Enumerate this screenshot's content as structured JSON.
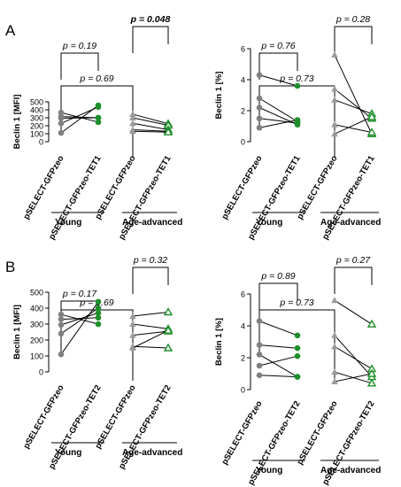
{
  "panel_letters": [
    "A",
    "B"
  ],
  "colors": {
    "young": "#808080",
    "advanced_gray": "#9a9a9a",
    "green": "#1e8f2a",
    "axis": "#000000"
  },
  "chart_data": [
    {
      "type": "scatter",
      "panel": "A",
      "ylabel": "Beclin 1 [MFI]",
      "ylim": [
        0,
        500
      ],
      "yticks": [
        0,
        100,
        200,
        300,
        400,
        500
      ],
      "categories": [
        "pSELECT-GFPzeo",
        "pSELECT-GFPzeo-TET1",
        "pSELECT-GFPzeo",
        "pSELECT-GFPzeo-TET1"
      ],
      "groups": [
        {
          "label": "Young",
          "cats": [
            0,
            1
          ]
        },
        {
          "label": "Age-advanced",
          "cats": [
            2,
            3
          ]
        }
      ],
      "paired": [
        {
          "cats": [
            0,
            1
          ],
          "pairs": [
            [
              110,
              455
            ],
            [
              230,
              435
            ],
            [
              295,
              300
            ],
            [
              315,
              300
            ],
            [
              365,
              245
            ]
          ]
        },
        {
          "cats": [
            2,
            3
          ],
          "pairs": [
            [
              345,
              225
            ],
            [
              300,
              205
            ],
            [
              230,
              150
            ],
            [
              150,
              130
            ],
            [
              130,
              120
            ]
          ]
        }
      ],
      "brackets": [
        {
          "from": 0,
          "to": 2,
          "level": 2,
          "text": "p = 0.69",
          "bold": false
        },
        {
          "from": 0,
          "to": 1,
          "level": 1,
          "text": "p = 0.19",
          "bold": false
        },
        {
          "from": 2,
          "to": 3,
          "level": 1,
          "text": "p = 0.048",
          "bold": true
        }
      ]
    },
    {
      "type": "scatter",
      "panel": "A",
      "ylabel": "Beclin 1 [%]",
      "ylim": [
        0,
        6
      ],
      "yticks": [
        0,
        2,
        4,
        6
      ],
      "categories": [
        "pSELECT-GFPzeo",
        "pSELECT-GFPzeo-TET1",
        "pSELECT-GFPzeo",
        "pSELECT-GFPzeo-TET1"
      ],
      "groups": [
        {
          "label": "Young",
          "cats": [
            0,
            1
          ]
        },
        {
          "label": "Age-advanced",
          "cats": [
            2,
            3
          ]
        }
      ],
      "paired": [
        {
          "cats": [
            0,
            1
          ],
          "pairs": [
            [
              4.3,
              3.6
            ],
            [
              2.8,
              1.3
            ],
            [
              2.2,
              1.1
            ],
            [
              1.5,
              1.2
            ],
            [
              0.9,
              1.4
            ]
          ]
        },
        {
          "cats": [
            2,
            3
          ],
          "pairs": [
            [
              5.6,
              0.5
            ],
            [
              3.4,
              1.5
            ],
            [
              2.7,
              1.8
            ],
            [
              1.1,
              0.6
            ],
            [
              0.5,
              1.6
            ]
          ]
        }
      ],
      "brackets": [
        {
          "from": 0,
          "to": 2,
          "level": 2,
          "text": "p = 0.73",
          "bold": false
        },
        {
          "from": 0,
          "to": 1,
          "level": 1,
          "text": "p = 0.76",
          "bold": false
        },
        {
          "from": 2,
          "to": 3,
          "level": 1,
          "text": "p = 0.28",
          "bold": false
        }
      ]
    },
    {
      "type": "scatter",
      "panel": "B",
      "ylabel": "Beclin 1 [MFI]",
      "ylim": [
        0,
        500
      ],
      "yticks": [
        0,
        100,
        200,
        300,
        400,
        500
      ],
      "categories": [
        "pSELECT-GFPzeo",
        "pSELECT-GFPzeo-TET2",
        "pSELECT-GFPzeo",
        "pSELECT-GFPzeo-TET2"
      ],
      "groups": [
        {
          "label": "Young",
          "cats": [
            0,
            1
          ]
        },
        {
          "label": "Age-advanced",
          "cats": [
            2,
            3
          ]
        }
      ],
      "paired": [
        {
          "cats": [
            0,
            1
          ],
          "pairs": [
            [
              110,
              440
            ],
            [
              240,
              400
            ],
            [
              295,
              370
            ],
            [
              330,
              340
            ],
            [
              360,
              300
            ]
          ]
        },
        {
          "cats": [
            2,
            3
          ],
          "pairs": [
            [
              350,
              375
            ],
            [
              300,
              270
            ],
            [
              230,
              255
            ],
            [
              160,
              150
            ],
            [
              150,
              260
            ]
          ]
        }
      ],
      "brackets": [
        {
          "from": 0,
          "to": 2,
          "level": 2,
          "text": "p = 0.69",
          "bold": false
        },
        {
          "from": 0,
          "to": 1,
          "level": 1,
          "text": "p = 0.17",
          "bold": false
        },
        {
          "from": 2,
          "to": 3,
          "level": 1,
          "text": "p = 0.32",
          "bold": false
        }
      ]
    },
    {
      "type": "scatter",
      "panel": "B",
      "ylabel": "Beclin 1 [%]",
      "ylim": [
        0,
        6
      ],
      "yticks": [
        0,
        2,
        4,
        6
      ],
      "categories": [
        "pSELECT-GFPzeo",
        "pSELECT-GFPzeo-TET2",
        "pSELECT-GFPzeo",
        "pSELECT-GFPzeo-TET2"
      ],
      "groups": [
        {
          "label": "Young",
          "cats": [
            0,
            1
          ]
        },
        {
          "label": "Age-advanced",
          "cats": [
            2,
            3
          ]
        }
      ],
      "paired": [
        {
          "cats": [
            0,
            1
          ],
          "pairs": [
            [
              4.3,
              3.4
            ],
            [
              2.8,
              2.6
            ],
            [
              2.2,
              0.8
            ],
            [
              1.5,
              2.1
            ],
            [
              0.9,
              0.8
            ]
          ]
        },
        {
          "cats": [
            2,
            3
          ],
          "pairs": [
            [
              5.6,
              4.1
            ],
            [
              3.4,
              0.8
            ],
            [
              2.7,
              1.3
            ],
            [
              1.1,
              0.4
            ],
            [
              0.5,
              1.0
            ]
          ]
        }
      ],
      "brackets": [
        {
          "from": 0,
          "to": 2,
          "level": 2,
          "text": "p = 0.73",
          "bold": false
        },
        {
          "from": 0,
          "to": 1,
          "level": 1,
          "text": "p = 0.89",
          "bold": false
        },
        {
          "from": 2,
          "to": 3,
          "level": 1,
          "text": "p = 0.27",
          "bold": false
        }
      ]
    }
  ]
}
